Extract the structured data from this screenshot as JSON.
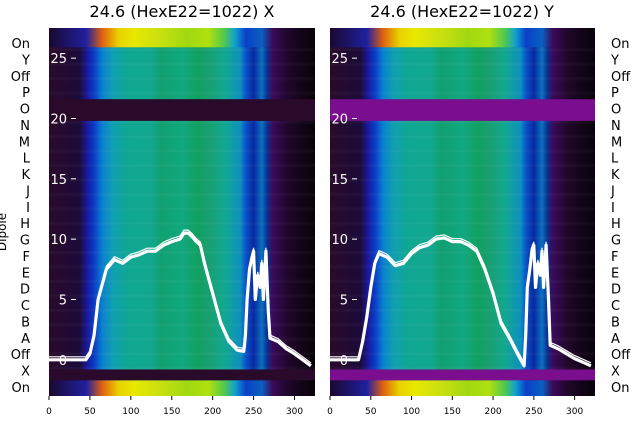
{
  "chart_data": [
    {
      "type": "heatmap",
      "title": "24.6 (HexE22=1022) X",
      "ylabel": "Dipole",
      "x_ticks": [
        0,
        50,
        100,
        150,
        200,
        250,
        300
      ],
      "y_ticks": [
        0,
        5,
        10,
        15,
        20,
        25
      ],
      "xlim": [
        0,
        325
      ],
      "ylim": [
        -3,
        27.5
      ],
      "dipole_labels": [
        "On",
        "X",
        "Off",
        "A",
        "B",
        "C",
        "D",
        "E",
        "F",
        "G",
        "H",
        "I",
        "J",
        "K",
        "L",
        "M",
        "N",
        "O",
        "P",
        "Off",
        "Y",
        "On"
      ],
      "off_bands": [
        [
          -1.7,
          -0.8
        ],
        [
          19.8,
          21.6
        ]
      ],
      "off_band_color": "#2a0a2a",
      "overlay_trace": {
        "x": [
          0,
          45,
          50,
          55,
          60,
          70,
          80,
          90,
          100,
          110,
          120,
          130,
          140,
          150,
          160,
          165,
          170,
          175,
          180,
          185,
          190,
          200,
          210,
          220,
          230,
          238,
          240,
          242,
          245,
          248,
          250,
          252,
          255,
          258,
          260,
          262,
          265,
          268,
          270,
          280,
          290,
          300,
          310,
          320
        ],
        "y": [
          0,
          0,
          0.5,
          2,
          5,
          7.5,
          8.3,
          8,
          8.5,
          8.7,
          9,
          9,
          9.5,
          9.8,
          10,
          10.5,
          10.5,
          10.2,
          9.8,
          9.5,
          8,
          5.5,
          3,
          1.5,
          0.8,
          0.7,
          2,
          5,
          7.5,
          8.5,
          9,
          5,
          7,
          6,
          8,
          5,
          9,
          4,
          1.8,
          1.5,
          0.9,
          0.5,
          0,
          -0.5
        ]
      }
    },
    {
      "type": "heatmap",
      "title": "24.6 (HexE22=1022) Y",
      "ylabel": "",
      "x_ticks": [
        0,
        50,
        100,
        150,
        200,
        250,
        300
      ],
      "y_ticks": [
        0,
        5,
        10,
        15,
        20,
        25
      ],
      "xlim": [
        0,
        325
      ],
      "ylim": [
        -3,
        27.5
      ],
      "dipole_labels": [
        "On",
        "X",
        "Off",
        "A",
        "B",
        "C",
        "D",
        "E",
        "F",
        "G",
        "H",
        "I",
        "J",
        "K",
        "L",
        "M",
        "N",
        "O",
        "P",
        "Off",
        "Y",
        "On"
      ],
      "off_bands": [
        [
          -1.7,
          -0.8
        ],
        [
          19.8,
          21.6
        ]
      ],
      "off_band_color": "#7a0e8e",
      "overlay_trace": {
        "x": [
          0,
          35,
          40,
          45,
          50,
          55,
          60,
          70,
          80,
          90,
          100,
          110,
          120,
          130,
          140,
          150,
          160,
          170,
          180,
          190,
          200,
          210,
          220,
          230,
          238,
          240,
          242,
          245,
          248,
          250,
          252,
          255,
          258,
          260,
          262,
          265,
          268,
          270,
          280,
          290,
          300,
          310,
          320
        ],
        "y": [
          0,
          0,
          1.5,
          3.5,
          6,
          8,
          8.8,
          8.5,
          7.8,
          8,
          8.8,
          9.3,
          9.5,
          10,
          10.1,
          9.8,
          9.8,
          9.5,
          9,
          7.5,
          5.5,
          3,
          1.8,
          0.5,
          -0.5,
          2,
          6,
          7.5,
          9.2,
          9.5,
          6,
          8,
          7,
          9,
          6,
          9.5,
          5,
          1.2,
          0.9,
          0.5,
          0.1,
          -0.2,
          -0.5
        ]
      }
    }
  ]
}
